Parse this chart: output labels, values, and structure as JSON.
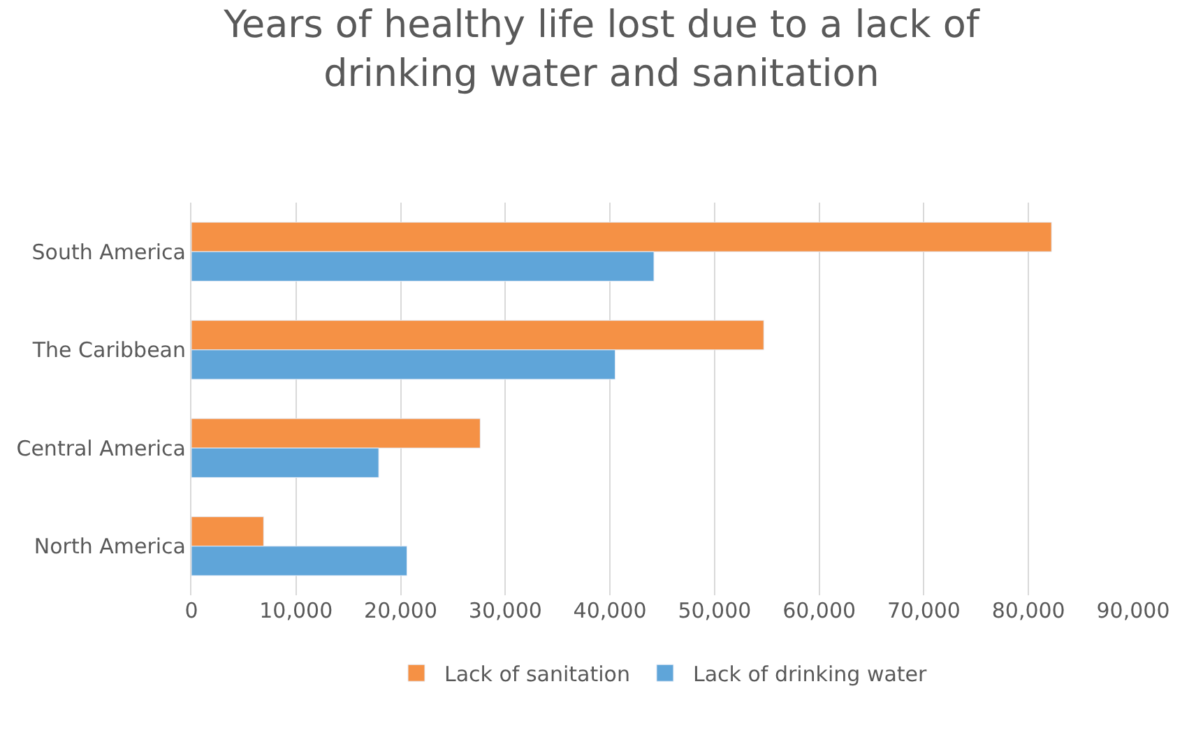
{
  "chart_data": {
    "type": "bar",
    "orientation": "horizontal",
    "title": "Years of healthy life lost due to a lack of drinking water and sanitation",
    "categories": [
      "South America",
      "The Caribbean",
      "Central America",
      "North America"
    ],
    "series": [
      {
        "name": "Lack of sanitation",
        "color": "#f59145",
        "values": [
          82200,
          54700,
          27600,
          6900
        ]
      },
      {
        "name": "Lack of drinking water",
        "color": "#5fa5d9",
        "values": [
          44200,
          40500,
          17900,
          20600
        ]
      }
    ],
    "xlim": [
      0,
      90000
    ],
    "xticks": [
      0,
      {
        "value": 10000,
        "label": "10,000"
      },
      {
        "value": 20000,
        "label": "20,000"
      },
      {
        "value": 30000,
        "label": "30,000"
      },
      {
        "value": 40000,
        "label": "40,000"
      },
      {
        "value": 50000,
        "label": "50,000"
      },
      {
        "value": 60000,
        "label": "60,000"
      },
      {
        "value": 70000,
        "label": "70,000"
      },
      {
        "value": 80000,
        "label": "80,000"
      },
      {
        "value": 90000,
        "label": "90,000"
      }
    ],
    "grid": "x",
    "legend": "bottom"
  }
}
